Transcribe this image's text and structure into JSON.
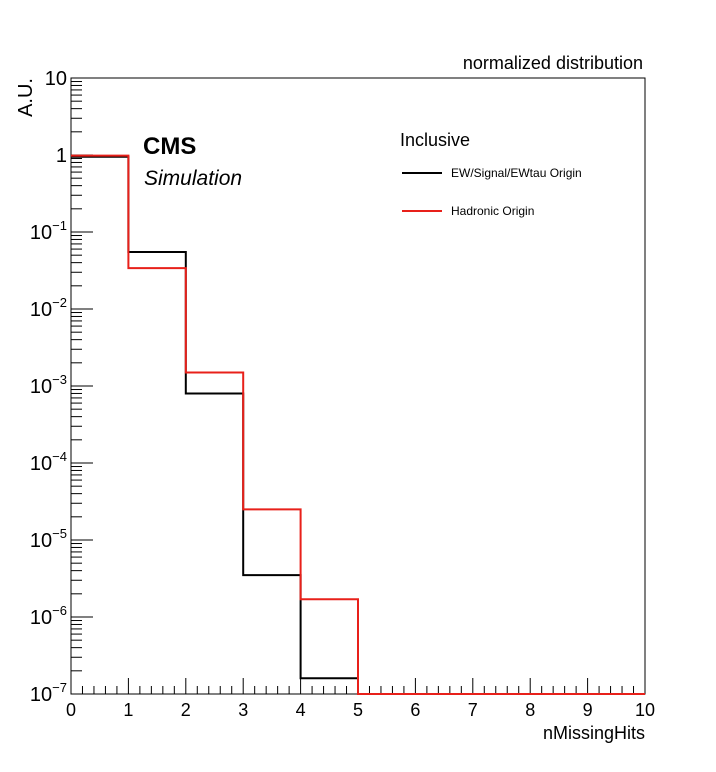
{
  "chart_data": {
    "type": "histogram-step",
    "title": "normalized distribution",
    "xlabel": "nMissingHits",
    "ylabel": "A.U.",
    "xlim": [
      0,
      10
    ],
    "ylim": [
      1e-07,
      10
    ],
    "yscale": "log",
    "x_bin_edges": [
      0,
      1,
      2,
      3,
      4,
      5,
      6,
      7,
      8,
      9,
      10
    ],
    "x_tick_labels": [
      "0",
      "1",
      "2",
      "3",
      "4",
      "5",
      "6",
      "7",
      "8",
      "9",
      "10"
    ],
    "y_ticks": [
      {
        "value": 1e-07,
        "base": "10",
        "exp": "−7"
      },
      {
        "value": 1e-06,
        "base": "10",
        "exp": "−6"
      },
      {
        "value": 1e-05,
        "base": "10",
        "exp": "−5"
      },
      {
        "value": 0.0001,
        "base": "10",
        "exp": "−4"
      },
      {
        "value": 0.001,
        "base": "10",
        "exp": "−3"
      },
      {
        "value": 0.01,
        "base": "10",
        "exp": "−2"
      },
      {
        "value": 0.1,
        "base": "10",
        "exp": "−1"
      },
      {
        "value": 1,
        "base": "1",
        "exp": ""
      },
      {
        "value": 10,
        "base": "10",
        "exp": ""
      }
    ],
    "series": [
      {
        "name": "EW/Signal/EWtau Origin",
        "color": "#000000",
        "values": [
          0.95,
          0.055,
          0.0008,
          3.5e-06,
          1.6e-07,
          1e-07,
          1e-07,
          1e-07,
          1e-07,
          1e-07
        ]
      },
      {
        "name": "Hadronic Origin",
        "color": "#e8201a",
        "values": [
          0.98,
          0.034,
          0.0015,
          2.5e-05,
          1.7e-06,
          1e-07,
          1e-07,
          1e-07,
          1e-07,
          1e-07
        ]
      }
    ],
    "legend": {
      "header": "Inclusive",
      "placement": "top-right"
    },
    "annotations": {
      "experiment": "CMS",
      "label": "Simulation"
    },
    "grid": false
  }
}
